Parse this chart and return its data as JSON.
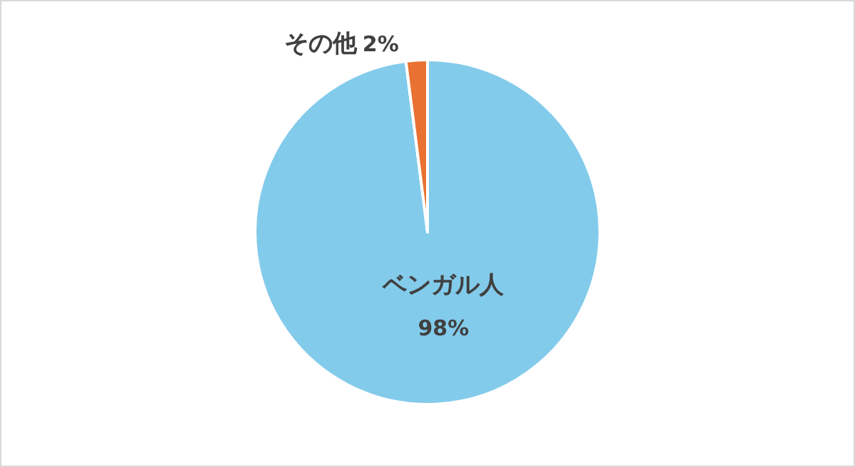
{
  "chart_data": {
    "type": "pie",
    "categories": [
      "ベンガル人",
      "その他"
    ],
    "values": [
      98,
      2
    ],
    "colors": [
      "#83cbeb",
      "#e97132"
    ],
    "value_labels": [
      "98%",
      "2%"
    ]
  }
}
